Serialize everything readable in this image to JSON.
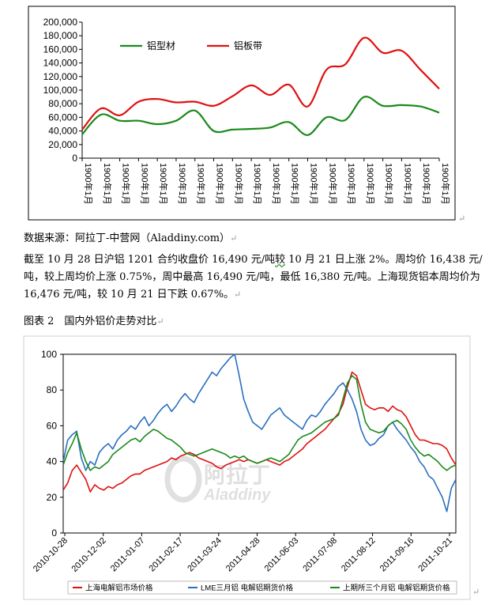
{
  "chart_data": [
    {
      "type": "line",
      "title": "",
      "xlabel": "",
      "ylabel": "",
      "ylim": [
        0,
        200000
      ],
      "yticks": [
        "0",
        "20,000",
        "40,000",
        "60,000",
        "80,000",
        "100,000",
        "120,000",
        "140,000",
        "160,000",
        "180,000",
        "200,000"
      ],
      "categories": [
        "1900年1月",
        "1900年1月",
        "1900年1月",
        "1900年1月",
        "1900年1月",
        "1900年1月",
        "1900年1月",
        "1900年1月",
        "1900年1月",
        "1900年1月",
        "1900年1月",
        "1900年1月",
        "1900年1月",
        "1900年1月",
        "1900年1月",
        "1900年1月",
        "1900年1月",
        "1900年1月",
        "1900年1月",
        "1900年1月"
      ],
      "series": [
        {
          "name": "铝型材",
          "color": "#1a8a1a",
          "values": [
            35000,
            64000,
            55000,
            55000,
            50000,
            55000,
            70000,
            40000,
            42000,
            43000,
            45000,
            53000,
            34000,
            60000,
            56000,
            90000,
            77000,
            78000,
            76000,
            67000
          ]
        },
        {
          "name": "铝板带",
          "color": "#e01010",
          "values": [
            42000,
            73000,
            63000,
            83000,
            87000,
            82000,
            83000,
            77000,
            91000,
            107000,
            93000,
            108000,
            76000,
            130000,
            138000,
            177000,
            155000,
            158000,
            130000,
            102000
          ]
        }
      ],
      "legend": "top-left",
      "grid": false
    },
    {
      "type": "line",
      "title": "",
      "xlabel": "",
      "ylabel": "",
      "ylim": [
        0,
        100
      ],
      "yticks": [
        "0",
        "20",
        "40",
        "60",
        "80",
        "100"
      ],
      "xticks": [
        "2010-10-28",
        "2010-12-02",
        "2011-01-07",
        "2011-02-17",
        "2011-03-24",
        "2011-04-28",
        "2011-06-03",
        "2011-07-08",
        "2011-08-12",
        "2011-09-16",
        "2011-10-21"
      ],
      "series": [
        {
          "name": "上海电解铝市场价格",
          "color": "#e01010",
          "values": [
            24,
            28,
            35,
            38,
            34,
            30,
            23,
            27,
            25,
            24,
            26,
            25,
            27,
            28,
            30,
            32,
            33,
            33,
            35,
            36,
            37,
            38,
            39,
            40,
            42,
            41,
            43,
            44,
            45,
            44,
            42,
            41,
            40,
            39,
            37,
            36,
            38,
            39,
            40,
            41,
            40,
            41,
            40,
            39,
            40,
            41,
            40,
            39,
            38,
            40,
            41,
            43,
            45,
            47,
            50,
            52,
            54,
            56,
            58,
            61,
            64,
            67,
            72,
            82,
            90,
            88,
            80,
            72,
            70,
            69,
            70,
            70,
            68,
            71,
            69,
            68,
            65,
            60,
            55,
            52,
            52,
            51,
            50,
            50,
            49,
            47,
            42,
            38
          ]
        },
        {
          "name": "LME三月铝 电解铝期货价格",
          "color": "#2a6fc0",
          "values": [
            40,
            52,
            55,
            57,
            42,
            35,
            40,
            38,
            45,
            48,
            50,
            47,
            52,
            55,
            57,
            60,
            58,
            62,
            65,
            60,
            63,
            67,
            70,
            72,
            68,
            71,
            75,
            78,
            75,
            73,
            78,
            82,
            86,
            90,
            88,
            92,
            95,
            98,
            100,
            88,
            75,
            68,
            62,
            60,
            58,
            62,
            66,
            68,
            70,
            66,
            64,
            62,
            60,
            58,
            63,
            66,
            65,
            68,
            72,
            75,
            78,
            82,
            84,
            80,
            75,
            68,
            58,
            52,
            49,
            50,
            53,
            55,
            60,
            62,
            58,
            55,
            52,
            48,
            45,
            40,
            37,
            32,
            30,
            25,
            20,
            12,
            25,
            30
          ]
        },
        {
          "name": "上期所三个月铝 电解铝期货价格",
          "color": "#1a8a1a",
          "values": [
            38,
            45,
            50,
            56,
            47,
            40,
            35,
            37,
            36,
            38,
            40,
            44,
            46,
            48,
            50,
            52,
            53,
            51,
            54,
            56,
            58,
            57,
            55,
            53,
            52,
            50,
            48,
            45,
            44,
            43,
            44,
            45,
            46,
            47,
            46,
            45,
            44,
            42,
            43,
            42,
            43,
            41,
            40,
            39,
            40,
            41,
            42,
            41,
            40,
            42,
            44,
            48,
            52,
            54,
            55,
            56,
            58,
            60,
            62,
            63,
            64,
            66,
            75,
            84,
            88,
            86,
            72,
            62,
            58,
            57,
            56,
            57,
            60,
            62,
            63,
            61,
            58,
            52,
            48,
            45,
            43,
            44,
            42,
            40,
            37,
            35,
            37,
            38
          ]
        }
      ],
      "legend": "bottom",
      "grid": false,
      "watermark": "阿拉丁 Aladdiny"
    }
  ],
  "source_line": "数据来源：阿拉丁-中营网（Aladdiny.com）",
  "paragraph": {
    "p1": "截至 10 月 28 日沪铝 1201 合约收盘价 16,490 元/吨",
    "p2": "较",
    "p3": " 10 月 21 日上涨 2%。周均价 16,438 元/吨，较上周均价上涨 0.75%，周中最高 16,490 元/吨，最低 16,380 元/吨。上海现货铝本周均价为 16,476 元/吨，较 10 月 21 日下跌 0.67%。"
  },
  "figure_caption": "图表 2　国内外铝价走势对比",
  "return_mark": "↵"
}
